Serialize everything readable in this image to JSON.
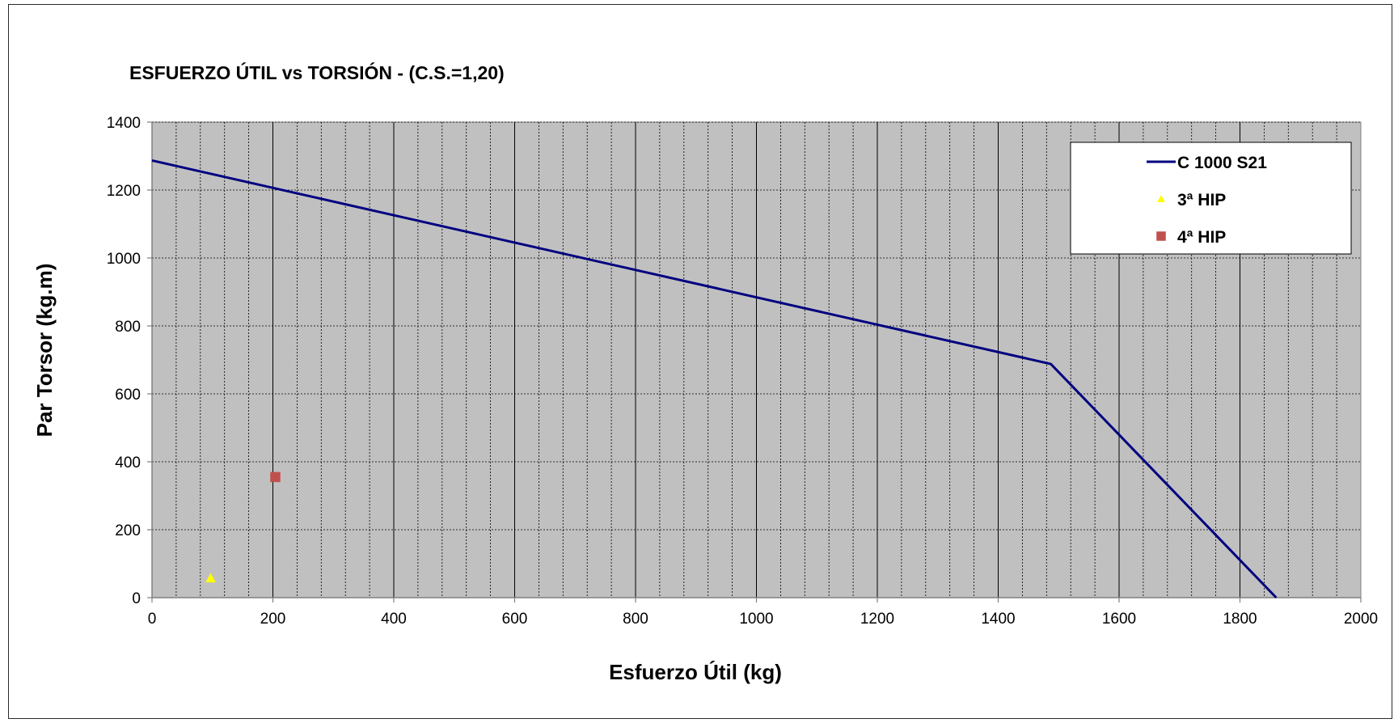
{
  "chart_data": {
    "type": "line",
    "title": "ESFUERZO ÚTIL vs TORSIÓN - (C.S.=1,20)",
    "xlabel": "Esfuerzo Útil (kg)",
    "ylabel": "Par Torsor (kg.m)",
    "xlim": [
      0,
      2000
    ],
    "ylim": [
      0,
      1400
    ],
    "x_major_step": 200,
    "x_minor_step": 40,
    "y_major_step": 200,
    "x_ticks": [
      "0",
      "200",
      "400",
      "600",
      "800",
      "1000",
      "1200",
      "1400",
      "1600",
      "1800",
      "2000"
    ],
    "y_ticks": [
      "0",
      "200",
      "400",
      "600",
      "800",
      "1000",
      "1200",
      "1400"
    ],
    "grid": true,
    "plot_background": "#c0c0c0",
    "legend_position": "top-right",
    "series": [
      {
        "name": "C 1000 S21",
        "kind": "line",
        "color": "#000080",
        "marker": "none",
        "points": [
          [
            0,
            1287
          ],
          [
            1487,
            688
          ],
          [
            1860,
            0
          ]
        ]
      },
      {
        "name": "3ª HIP",
        "kind": "scatter",
        "color": "#ffff00",
        "marker": "triangle",
        "points": [
          [
            97,
            57
          ]
        ]
      },
      {
        "name": "4ª HIP",
        "kind": "scatter",
        "color": "#c0504d",
        "marker": "square",
        "points": [
          [
            204,
            355
          ]
        ]
      }
    ]
  }
}
